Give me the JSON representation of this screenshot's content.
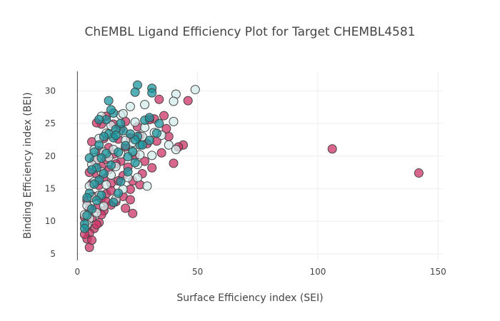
{
  "chart_data": {
    "type": "scatter",
    "title": "ChEMBL Ligand Efficiency Plot for Target CHEMBL4581",
    "xlabel": "Surface Efficiency index (SEI)",
    "ylabel": "Binding Efficiency index (BEI)",
    "xlim": [
      -1,
      152
    ],
    "ylim": [
      4,
      33
    ],
    "xticks": [
      0,
      50,
      100,
      150
    ],
    "yticks": [
      5,
      10,
      15,
      20,
      25,
      30
    ],
    "grid": true,
    "legend": "none",
    "series": [
      {
        "color": "#cc3366",
        "points": [
          [
            106,
            21.1
          ],
          [
            142,
            17.4
          ],
          [
            46,
            28.5
          ],
          [
            44,
            21.7
          ],
          [
            40,
            18.9
          ],
          [
            42,
            21.4
          ],
          [
            38,
            23.0
          ],
          [
            36,
            26.2
          ],
          [
            34,
            28.7
          ],
          [
            37,
            24.2
          ],
          [
            35,
            20.5
          ],
          [
            33,
            22.3
          ],
          [
            31,
            18.2
          ],
          [
            32,
            25.7
          ],
          [
            30,
            25.6
          ],
          [
            29,
            21.9
          ],
          [
            28,
            19.2
          ],
          [
            27,
            17.3
          ],
          [
            26,
            23.1
          ],
          [
            25,
            24.5
          ],
          [
            24,
            20.1
          ],
          [
            23,
            11.2
          ],
          [
            23,
            16.2
          ],
          [
            22,
            22.8
          ],
          [
            22,
            14.9
          ],
          [
            21,
            18.3
          ],
          [
            20,
            21.4
          ],
          [
            20,
            25.3
          ],
          [
            19,
            17.0
          ],
          [
            19,
            13.8
          ],
          [
            18,
            19.2
          ],
          [
            18,
            24.1
          ],
          [
            17,
            16.2
          ],
          [
            17,
            22.6
          ],
          [
            16,
            13.0
          ],
          [
            16,
            18.8
          ],
          [
            15,
            20.3
          ],
          [
            15,
            24.9
          ],
          [
            14,
            15.8
          ],
          [
            14,
            12.5
          ],
          [
            13,
            17.9
          ],
          [
            13,
            21.3
          ],
          [
            12,
            14.2
          ],
          [
            12,
            19.5
          ],
          [
            12,
            26.1
          ],
          [
            11,
            11.6
          ],
          [
            11,
            16.7
          ],
          [
            11,
            22.7
          ],
          [
            10,
            13.5
          ],
          [
            10,
            18.4
          ],
          [
            10,
            24.9
          ],
          [
            9,
            9.8
          ],
          [
            9,
            15.5
          ],
          [
            9,
            20.8
          ],
          [
            8,
            12.0
          ],
          [
            8,
            17.2
          ],
          [
            8,
            25.1
          ],
          [
            7,
            8.9
          ],
          [
            7,
            13.8
          ],
          [
            7,
            19.3
          ],
          [
            6,
            10.5
          ],
          [
            6,
            15.8
          ],
          [
            6,
            22.2
          ],
          [
            5,
            8.2
          ],
          [
            5,
            11.9
          ],
          [
            5,
            17.5
          ],
          [
            5,
            6.0
          ],
          [
            4,
            9.2
          ],
          [
            4,
            13.2
          ],
          [
            4,
            7.3
          ],
          [
            3,
            10.6
          ],
          [
            3,
            8.0
          ],
          [
            6,
            7.1
          ],
          [
            8,
            9.5
          ],
          [
            10,
            11.0
          ],
          [
            12,
            13.0
          ],
          [
            14,
            14.7
          ],
          [
            26,
            15.6
          ],
          [
            22,
            13.3
          ],
          [
            20,
            12.0
          ]
        ]
      },
      {
        "color": "#d3ebeb",
        "points": [
          [
            49,
            30.2
          ],
          [
            41,
            29.5
          ],
          [
            40,
            28.4
          ],
          [
            40,
            25.3
          ],
          [
            38,
            21.7
          ],
          [
            41,
            21.0
          ],
          [
            35,
            23.2
          ],
          [
            32,
            23.6
          ],
          [
            29,
            15.4
          ],
          [
            28,
            27.9
          ],
          [
            27,
            23.0
          ],
          [
            26,
            20.2
          ],
          [
            25,
            18.7
          ],
          [
            24,
            25.2
          ],
          [
            23,
            22.1
          ],
          [
            22,
            27.6
          ],
          [
            21,
            16.7
          ],
          [
            20,
            22.4
          ],
          [
            19,
            14.9
          ],
          [
            18,
            20.3
          ],
          [
            18,
            26.3
          ],
          [
            17,
            23.5
          ],
          [
            16,
            18.4
          ],
          [
            16,
            13.4
          ],
          [
            15,
            21.0
          ],
          [
            14,
            24.7
          ],
          [
            14,
            17.1
          ],
          [
            13,
            19.8
          ],
          [
            12,
            15.6
          ],
          [
            12,
            23.5
          ],
          [
            11,
            12.3
          ],
          [
            11,
            20.6
          ],
          [
            10,
            17.6
          ],
          [
            10,
            26.1
          ],
          [
            9,
            14.0
          ],
          [
            9,
            22.7
          ],
          [
            8,
            19.4
          ],
          [
            8,
            11.3
          ],
          [
            7,
            16.1
          ],
          [
            7,
            21.0
          ],
          [
            6,
            13.7
          ],
          [
            6,
            18.7
          ],
          [
            5,
            10.4
          ],
          [
            5,
            15.4
          ],
          [
            4,
            12.4
          ],
          [
            4,
            9.5
          ],
          [
            3,
            11.0
          ],
          [
            19,
            26.5
          ],
          [
            23,
            20.6
          ],
          [
            28,
            24.4
          ],
          [
            31,
            20.1
          ],
          [
            25,
            16.7
          ]
        ]
      },
      {
        "color": "#1a959e",
        "points": [
          [
            31,
            30.4
          ],
          [
            31,
            29.7
          ],
          [
            25,
            30.9
          ],
          [
            24,
            29.8
          ],
          [
            28,
            25.5
          ],
          [
            30,
            25.9
          ],
          [
            34,
            25.0
          ],
          [
            33,
            23.5
          ],
          [
            30,
            22.4
          ],
          [
            26,
            21.7
          ],
          [
            25,
            23.0
          ],
          [
            24,
            22.5
          ],
          [
            23,
            20.7
          ],
          [
            22,
            23.4
          ],
          [
            21,
            19.9
          ],
          [
            20,
            21.6
          ],
          [
            19,
            23.9
          ],
          [
            18,
            25.0
          ],
          [
            17,
            20.6
          ],
          [
            16,
            24.1
          ],
          [
            15,
            22.8
          ],
          [
            15,
            26.6
          ],
          [
            14,
            18.6
          ],
          [
            14,
            27.1
          ],
          [
            13,
            23.4
          ],
          [
            13,
            28.5
          ],
          [
            12,
            20.4
          ],
          [
            12,
            25.6
          ],
          [
            11,
            17.3
          ],
          [
            11,
            23.0
          ],
          [
            10,
            19.7
          ],
          [
            10,
            14.0
          ],
          [
            9,
            21.7
          ],
          [
            9,
            16.3
          ],
          [
            9,
            25.6
          ],
          [
            8,
            18.2
          ],
          [
            8,
            13.2
          ],
          [
            7,
            20.6
          ],
          [
            7,
            15.7
          ],
          [
            6,
            17.9
          ],
          [
            6,
            11.9
          ],
          [
            5,
            14.3
          ],
          [
            5,
            19.7
          ],
          [
            4,
            10.9
          ],
          [
            4,
            13.6
          ],
          [
            3,
            9.6
          ],
          [
            3,
            8.9
          ],
          [
            18,
            16.1
          ],
          [
            17,
            14.3
          ],
          [
            15,
            12.9
          ],
          [
            21,
            17.6
          ],
          [
            16,
            23.2
          ],
          [
            27,
            21.7
          ],
          [
            24,
            19.0
          ]
        ]
      }
    ]
  }
}
